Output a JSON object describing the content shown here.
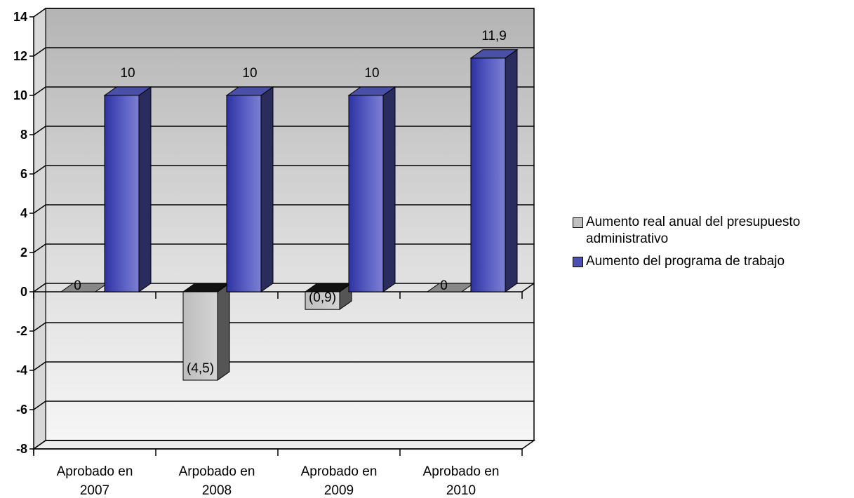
{
  "chart_data": {
    "type": "bar",
    "categories": [
      [
        "Aprobado en",
        "2007"
      ],
      [
        "Arpobado en",
        "2008"
      ],
      [
        "Aprobado en",
        "2009"
      ],
      [
        "Aprobado en",
        "2010"
      ]
    ],
    "series": [
      {
        "name": "Aumento real anual del presupuesto administrativo",
        "values": [
          0,
          -4.5,
          -0.9,
          0
        ],
        "labels": [
          "0",
          "(4,5)",
          "(0,9)",
          "0"
        ],
        "color": "#c0c0c0"
      },
      {
        "name": "Aumento del programa de trabajo",
        "values": [
          10,
          10,
          10,
          11.9
        ],
        "labels": [
          "10",
          "10",
          "10",
          "11,9"
        ],
        "color": "#4b50b4"
      }
    ],
    "ylim": [
      -8,
      14
    ],
    "yticks": [
      "14",
      "12",
      "10",
      "8",
      "6",
      "4",
      "2",
      "0",
      "-2",
      "-4",
      "-6",
      "-8"
    ],
    "grid": true,
    "legend_position": "right",
    "colors": {
      "wall_top": "#b4b4b4",
      "wall_bottom": "#f4f4f4",
      "floor": "#eeeeee"
    }
  }
}
